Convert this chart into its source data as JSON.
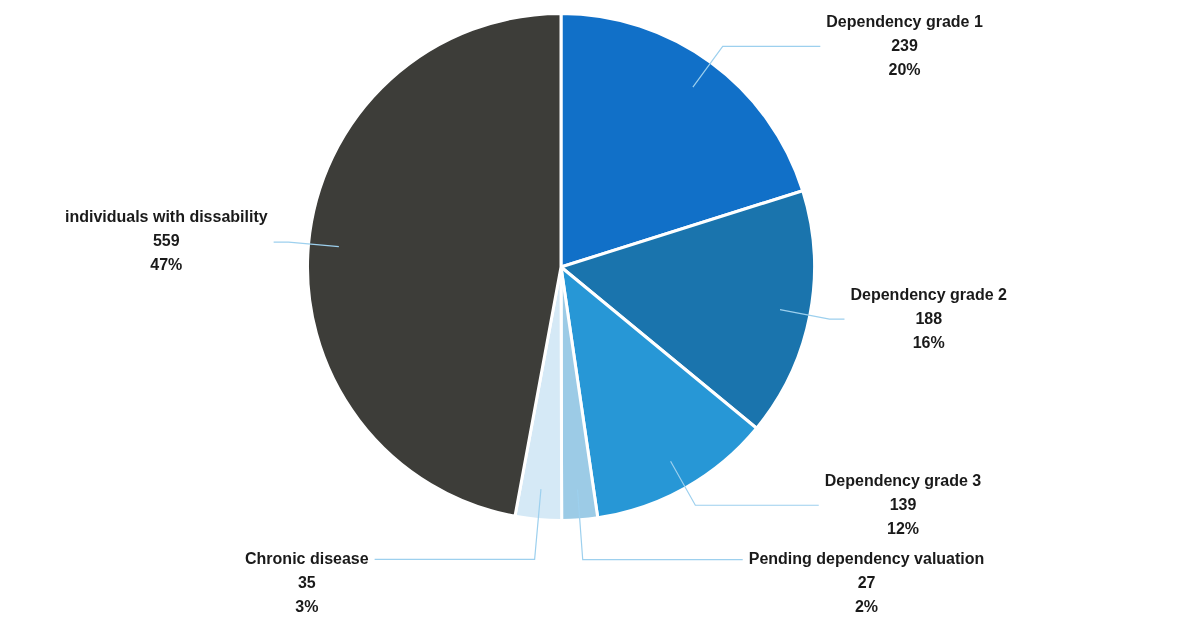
{
  "chart_data": {
    "type": "pie",
    "categories": [
      "Dependency grade 1",
      "Dependency grade 2",
      "Dependency grade 3",
      "Pending dependency valuation",
      "Chronic disease",
      "individuals with dissability"
    ],
    "values": [
      239,
      188,
      139,
      27,
      35,
      559
    ],
    "value_labels": [
      "239\n20%",
      "188\n16%",
      "139\n12%",
      "27\n2%",
      "35\n3%",
      "559\n47%"
    ],
    "colors": [
      "#1170c8",
      "#1a74ad",
      "#2797d6",
      "#9ccbe6",
      "#d5e9f6",
      "#3d3d39"
    ],
    "legend": false
  }
}
